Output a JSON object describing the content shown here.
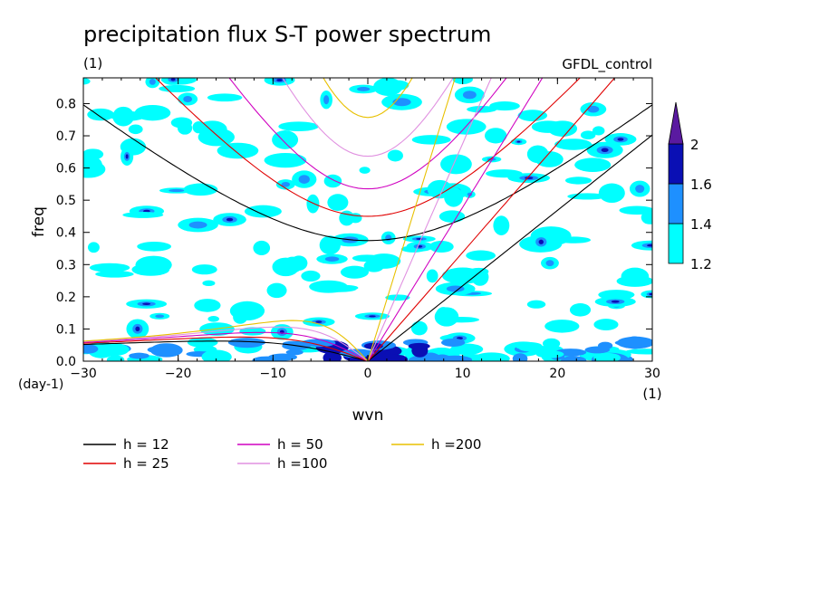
{
  "chart_data": {
    "type": "heatmap",
    "title": "precipitation flux S-T power spectrum",
    "subtitle_units": "(1)",
    "model_label": "GFDL_control",
    "xlabel": "wvn",
    "x_units": "(1)",
    "ylabel": "freq",
    "y_units": "(day-1)",
    "xlim": [
      -30,
      30
    ],
    "ylim": [
      0,
      0.88
    ],
    "x_ticks": [
      -30,
      -20,
      -10,
      0,
      10,
      20,
      30
    ],
    "x_tick_labels": [
      "−30",
      "−20",
      "−10",
      "0",
      "10",
      "20",
      "30"
    ],
    "y_ticks": [
      0,
      0.1,
      0.2,
      0.3,
      0.4,
      0.5,
      0.6,
      0.7,
      0.8
    ],
    "y_tick_labels": [
      "0.0",
      "0.1",
      "0.2",
      "0.3",
      "0.4",
      "0.5",
      "0.6",
      "0.7",
      "0.8"
    ],
    "colorbar": {
      "levels": [
        1.2,
        1.4,
        1.6,
        2
      ],
      "labels": [
        "1.2",
        "1.4",
        "1.6",
        "2"
      ],
      "colors": [
        "#00ffff",
        "#1e90ff",
        "#0a0fb4",
        "#5a1aa0"
      ]
    },
    "dispersion_curves": [
      {
        "name": "h = 12",
        "h": 12,
        "color": "#000000"
      },
      {
        "name": "h = 25",
        "h": 25,
        "color": "#e00000"
      },
      {
        "name": "h = 50",
        "h": 50,
        "color": "#d000c0"
      },
      {
        "name": "h =100",
        "h": 100,
        "color": "#e090e0"
      },
      {
        "name": "h =200",
        "h": 200,
        "color": "#e8c000"
      }
    ]
  }
}
